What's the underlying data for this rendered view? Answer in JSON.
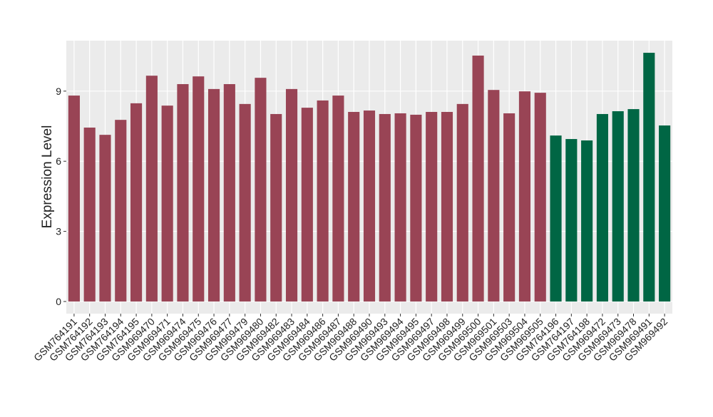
{
  "chart_data": {
    "type": "bar",
    "y_label": "Expression Level",
    "categories": [
      "GSM764191",
      "GSM764192",
      "GSM764193",
      "GSM764194",
      "GSM764195",
      "GSM969470",
      "GSM969471",
      "GSM969474",
      "GSM969475",
      "GSM969476",
      "GSM969477",
      "GSM969479",
      "GSM969480",
      "GSM969482",
      "GSM969483",
      "GSM969484",
      "GSM969486",
      "GSM969487",
      "GSM969488",
      "GSM969490",
      "GSM969493",
      "GSM969494",
      "GSM969495",
      "GSM969497",
      "GSM969498",
      "GSM969499",
      "GSM969500",
      "GSM969501",
      "GSM969503",
      "GSM969504",
      "GSM969505",
      "GSM764196",
      "GSM764197",
      "GSM764198",
      "GSM969472",
      "GSM969473",
      "GSM969478",
      "GSM969491",
      "GSM969492"
    ],
    "values": [
      8.81,
      7.44,
      7.13,
      7.77,
      8.48,
      9.66,
      8.38,
      9.3,
      9.63,
      9.09,
      9.3,
      8.45,
      9.57,
      8.02,
      9.09,
      8.29,
      8.6,
      8.81,
      8.11,
      8.17,
      8.02,
      8.05,
      7.99,
      8.11,
      8.11,
      8.45,
      10.52,
      9.05,
      8.05,
      8.99,
      8.93,
      7.1,
      6.95,
      6.89,
      8.02,
      8.14,
      8.23,
      10.64,
      7.53
    ],
    "colors": [
      "#994455",
      "#994455",
      "#994455",
      "#994455",
      "#994455",
      "#994455",
      "#994455",
      "#994455",
      "#994455",
      "#994455",
      "#994455",
      "#994455",
      "#994455",
      "#994455",
      "#994455",
      "#994455",
      "#994455",
      "#994455",
      "#994455",
      "#994455",
      "#994455",
      "#994455",
      "#994455",
      "#994455",
      "#994455",
      "#994455",
      "#994455",
      "#994455",
      "#994455",
      "#994455",
      "#994455",
      "#006644",
      "#006644",
      "#006644",
      "#006644",
      "#006644",
      "#006644",
      "#006644",
      "#006644"
    ],
    "ylim": [
      -0.52,
      11.16
    ],
    "yticks": [
      0,
      3,
      6,
      9
    ],
    "grid": true
  }
}
